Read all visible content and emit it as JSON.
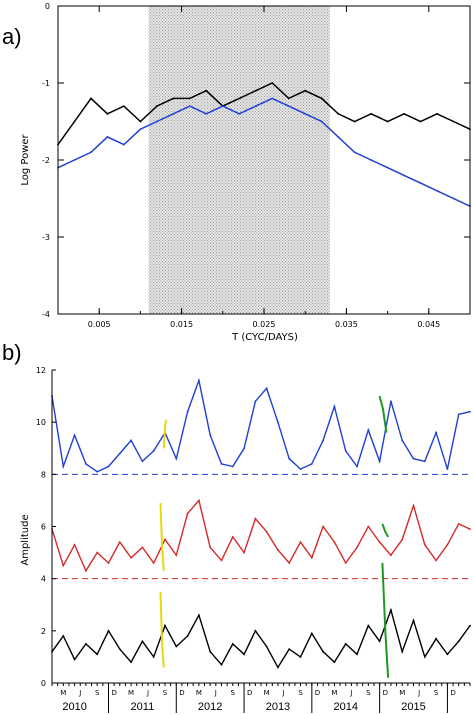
{
  "chart_data": [
    {
      "panel_label": "a)",
      "type": "line",
      "xlabel": "T (CYC/DAYS)",
      "ylabel": "Log Power",
      "xlim": [
        0.0,
        0.05
      ],
      "ylim": [
        -4,
        0
      ],
      "xticks": [
        "0.005",
        "0.015",
        "0.025",
        "0.035",
        "0.045"
      ],
      "xtick_values": [
        0.005,
        0.015,
        0.025,
        0.035,
        0.045
      ],
      "yticks": [
        "0",
        "-1",
        "-2",
        "-3",
        "-4"
      ],
      "ytick_values": [
        0,
        -1,
        -2,
        -3,
        -4
      ],
      "shaded_band": {
        "x": [
          0.011,
          0.033
        ],
        "pattern": "stipple",
        "color": "#c8c8c8"
      },
      "series": [
        {
          "color": "#000000",
          "x": [
            0.0,
            0.002,
            0.004,
            0.006,
            0.008,
            0.01,
            0.012,
            0.014,
            0.016,
            0.018,
            0.02,
            0.022,
            0.024,
            0.026,
            0.028,
            0.03,
            0.032,
            0.034,
            0.036,
            0.038,
            0.04,
            0.042,
            0.044,
            0.046,
            0.048,
            0.05
          ],
          "values": [
            -1.8,
            -1.5,
            -1.2,
            -1.4,
            -1.3,
            -1.5,
            -1.3,
            -1.2,
            -1.2,
            -1.1,
            -1.3,
            -1.2,
            -1.1,
            -1.0,
            -1.2,
            -1.1,
            -1.2,
            -1.4,
            -1.5,
            -1.4,
            -1.5,
            -1.4,
            -1.5,
            -1.4,
            -1.5,
            -1.6
          ]
        },
        {
          "color": "#1f3fd6",
          "x": [
            0.0,
            0.002,
            0.004,
            0.006,
            0.008,
            0.01,
            0.012,
            0.014,
            0.016,
            0.018,
            0.02,
            0.022,
            0.024,
            0.026,
            0.028,
            0.03,
            0.032,
            0.034,
            0.036,
            0.038,
            0.04,
            0.042,
            0.044,
            0.046,
            0.048,
            0.05
          ],
          "values": [
            -2.1,
            -2.0,
            -1.9,
            -1.7,
            -1.8,
            -1.6,
            -1.5,
            -1.4,
            -1.3,
            -1.4,
            -1.3,
            -1.4,
            -1.3,
            -1.2,
            -1.3,
            -1.4,
            -1.5,
            -1.7,
            -1.9,
            -2.0,
            -2.1,
            -2.2,
            -2.3,
            -2.4,
            -2.5,
            -2.6
          ]
        }
      ]
    },
    {
      "panel_label": "b)",
      "type": "line",
      "ylabel": "Amplitude",
      "xlim": [
        0,
        74
      ],
      "ylim": [
        0,
        12
      ],
      "yticks": [
        "0",
        "2",
        "4",
        "6",
        "8",
        "10",
        "12"
      ],
      "ytick_values": [
        0,
        2,
        4,
        6,
        8,
        10,
        12
      ],
      "months": [
        "M",
        "J",
        "S",
        "D",
        "M",
        "J",
        "S",
        "D",
        "M",
        "J",
        "S",
        "D",
        "M",
        "J",
        "S",
        "D",
        "M",
        "J",
        "S",
        "D",
        "M",
        "J",
        "S",
        "D"
      ],
      "month_positions": [
        2,
        5,
        8,
        11,
        14,
        17,
        20,
        23,
        26,
        29,
        32,
        35,
        38,
        41,
        44,
        47,
        50,
        53,
        56,
        59,
        62,
        65,
        68,
        71
      ],
      "years": [
        "2010",
        "2011",
        "2012",
        "2013",
        "2014",
        "2015"
      ],
      "year_positions": [
        4,
        16,
        28,
        40,
        52,
        64
      ],
      "baselines": [
        {
          "value": 8,
          "color": "#1f3fd6",
          "style": "dashed"
        },
        {
          "value": 4,
          "color": "#d42a2a",
          "style": "dashed"
        }
      ],
      "series": [
        {
          "color": "#1f3fd6",
          "x": [
            0,
            2,
            4,
            6,
            8,
            10,
            12,
            14,
            16,
            18,
            20,
            22,
            24,
            26,
            28,
            30,
            32,
            34,
            36,
            38,
            40,
            42,
            44,
            46,
            48,
            50,
            52,
            54,
            56,
            58,
            60,
            62,
            64,
            66,
            68,
            70,
            72,
            74
          ],
          "values": [
            11.0,
            8.3,
            9.5,
            8.4,
            8.1,
            8.3,
            8.8,
            9.3,
            8.5,
            8.9,
            9.6,
            8.6,
            10.4,
            11.6,
            9.5,
            8.4,
            8.3,
            9.0,
            10.8,
            11.3,
            10.0,
            8.6,
            8.2,
            8.4,
            9.3,
            10.6,
            8.9,
            8.3,
            9.7,
            8.5,
            10.8,
            9.3,
            8.6,
            8.5,
            9.6,
            8.2,
            10.3,
            10.4
          ]
        },
        {
          "color": "#d42a2a",
          "x": [
            0,
            2,
            4,
            6,
            8,
            10,
            12,
            14,
            16,
            18,
            20,
            22,
            24,
            26,
            28,
            30,
            32,
            34,
            36,
            38,
            40,
            42,
            44,
            46,
            48,
            50,
            52,
            54,
            56,
            58,
            60,
            62,
            64,
            66,
            68,
            70,
            72,
            74
          ],
          "values": [
            5.9,
            4.5,
            5.3,
            4.3,
            5.0,
            4.6,
            5.4,
            4.8,
            5.2,
            4.6,
            5.5,
            4.9,
            6.5,
            7.0,
            5.2,
            4.7,
            5.6,
            5.0,
            6.3,
            5.8,
            5.1,
            4.6,
            5.4,
            4.8,
            6.0,
            5.4,
            4.6,
            5.2,
            6.0,
            5.4,
            4.9,
            5.5,
            6.8,
            5.3,
            4.7,
            5.3,
            6.1,
            5.9
          ]
        },
        {
          "color": "#000000",
          "x": [
            0,
            2,
            4,
            6,
            8,
            10,
            12,
            14,
            16,
            18,
            20,
            22,
            24,
            26,
            28,
            30,
            32,
            34,
            36,
            38,
            40,
            42,
            44,
            46,
            48,
            50,
            52,
            54,
            56,
            58,
            60,
            62,
            64,
            66,
            68,
            70,
            72,
            74
          ],
          "values": [
            1.2,
            1.8,
            0.9,
            1.5,
            1.1,
            2.0,
            1.3,
            0.8,
            1.6,
            1.0,
            2.2,
            1.4,
            1.8,
            2.6,
            1.2,
            0.7,
            1.5,
            1.1,
            2.0,
            1.4,
            0.6,
            1.3,
            1.0,
            1.9,
            1.2,
            0.8,
            1.5,
            1.1,
            2.2,
            1.6,
            2.8,
            1.2,
            2.4,
            1.0,
            1.7,
            1.1,
            1.6,
            2.2
          ]
        }
      ],
      "highlights": [
        {
          "color": "#e8d90f",
          "x": [
            19.2,
            19.5,
            19.8
          ],
          "values": [
            3.5,
            1.5,
            0.6
          ]
        },
        {
          "color": "#e8d90f",
          "x": [
            19.2,
            19.5,
            19.8
          ],
          "values": [
            6.9,
            5.2,
            4.3
          ]
        },
        {
          "color": "#e8d90f",
          "x": [
            19.8,
            20.0,
            20.2
          ],
          "values": [
            9.0,
            9.8,
            10.1
          ]
        },
        {
          "color": "#1e9a1e",
          "x": [
            58.5,
            59.0,
            59.5
          ],
          "values": [
            4.6,
            2.0,
            0.2
          ]
        },
        {
          "color": "#1e9a1e",
          "x": [
            58.5,
            59.0,
            59.5
          ],
          "values": [
            6.1,
            5.8,
            5.6
          ]
        },
        {
          "color": "#1e9a1e",
          "x": [
            58.0,
            58.6,
            59.2
          ],
          "values": [
            11.0,
            10.5,
            9.6
          ]
        }
      ]
    }
  ]
}
